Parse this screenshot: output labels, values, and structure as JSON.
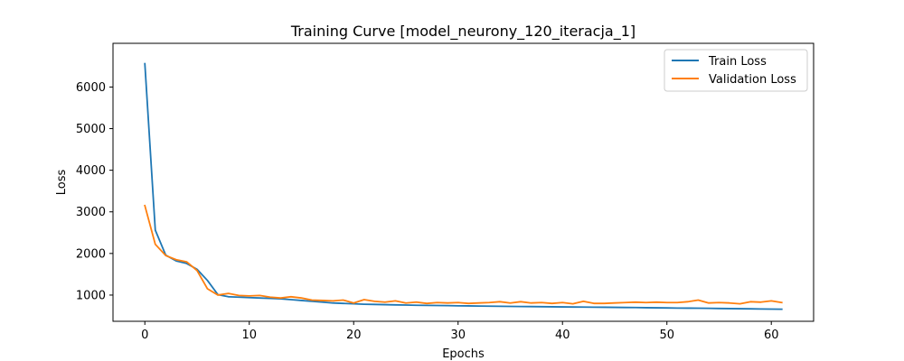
{
  "chart_data": {
    "type": "line",
    "title": "Training Curve [model_neurony_120_iteracja_1]",
    "xlabel": "Epochs",
    "ylabel": "Loss",
    "xlim": [
      -3.05,
      64.05
    ],
    "ylim": [
      370,
      7050
    ],
    "x_ticks": [
      0,
      10,
      20,
      30,
      40,
      50,
      60
    ],
    "y_ticks": [
      1000,
      2000,
      3000,
      4000,
      5000,
      6000
    ],
    "legend_position": "top-right",
    "grid": false,
    "x": [
      0,
      1,
      2,
      3,
      4,
      5,
      6,
      7,
      8,
      9,
      10,
      11,
      12,
      13,
      14,
      15,
      16,
      17,
      18,
      19,
      20,
      21,
      22,
      23,
      24,
      25,
      26,
      27,
      28,
      29,
      30,
      31,
      32,
      33,
      34,
      35,
      36,
      37,
      38,
      39,
      40,
      41,
      42,
      43,
      44,
      45,
      46,
      47,
      48,
      49,
      50,
      51,
      52,
      53,
      54,
      55,
      56,
      57,
      58,
      59,
      60,
      61
    ],
    "series": [
      {
        "name": "Train Loss",
        "color": "#1f77b4",
        "values": [
          6560,
          2560,
          1960,
          1820,
          1760,
          1620,
          1350,
          1010,
          960,
          950,
          940,
          930,
          920,
          910,
          890,
          870,
          850,
          830,
          810,
          800,
          790,
          780,
          775,
          770,
          765,
          760,
          755,
          752,
          750,
          746,
          742,
          740,
          736,
          734,
          731,
          728,
          726,
          724,
          721,
          718,
          716,
          713,
          711,
          709,
          707,
          705,
          702,
          700,
          697,
          694,
          691,
          688,
          686,
          684,
          681,
          678,
          675,
          672,
          669,
          666,
          663,
          660
        ]
      },
      {
        "name": "Validation Loss",
        "color": "#ff7f0e",
        "values": [
          3150,
          2220,
          1950,
          1850,
          1800,
          1590,
          1150,
          1000,
          1040,
          990,
          980,
          990,
          950,
          930,
          960,
          930,
          880,
          870,
          860,
          880,
          810,
          890,
          850,
          830,
          860,
          810,
          830,
          800,
          820,
          810,
          820,
          800,
          810,
          820,
          840,
          810,
          840,
          810,
          820,
          800,
          820,
          790,
          850,
          800,
          800,
          810,
          820,
          830,
          820,
          830,
          820,
          820,
          840,
          880,
          810,
          820,
          810,
          790,
          840,
          830,
          860,
          820
        ]
      }
    ]
  }
}
